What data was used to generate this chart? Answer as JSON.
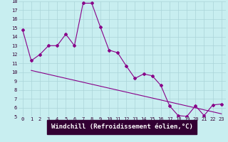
{
  "xlabel": "Windchill (Refroidissement éolien,°C)",
  "bg_color": "#c8eef0",
  "grid_color": "#aad4d8",
  "line_color": "#880088",
  "axis_label_bg": "#330033",
  "axis_label_fg": "#ffffff",
  "tick_color": "#330033",
  "xlim": [
    -0.5,
    23.5
  ],
  "ylim": [
    5,
    18
  ],
  "xticks": [
    0,
    1,
    2,
    3,
    4,
    5,
    6,
    7,
    8,
    9,
    10,
    11,
    12,
    13,
    14,
    15,
    16,
    17,
    18,
    19,
    20,
    21,
    22,
    23
  ],
  "yticks": [
    5,
    6,
    7,
    8,
    9,
    10,
    11,
    12,
    13,
    14,
    15,
    16,
    17,
    18
  ],
  "curve1_x": [
    0,
    1,
    2,
    3,
    4,
    5,
    6,
    7,
    8,
    9,
    10,
    11,
    12,
    13,
    14,
    15,
    16,
    17,
    18,
    19,
    20,
    21,
    22,
    23
  ],
  "curve1_y": [
    14.8,
    11.3,
    12.0,
    13.0,
    13.0,
    14.3,
    13.0,
    17.8,
    17.8,
    15.1,
    12.5,
    12.2,
    10.7,
    9.3,
    9.8,
    9.6,
    8.5,
    6.2,
    5.1,
    5.0,
    6.2,
    5.1,
    6.3,
    6.4
  ],
  "trend_x": [
    1,
    23
  ],
  "trend_y": [
    10.2,
    5.3
  ],
  "marker": "D",
  "markersize": 2,
  "linewidth": 0.8,
  "tick_fontsize": 5,
  "label_fontsize": 6.5
}
